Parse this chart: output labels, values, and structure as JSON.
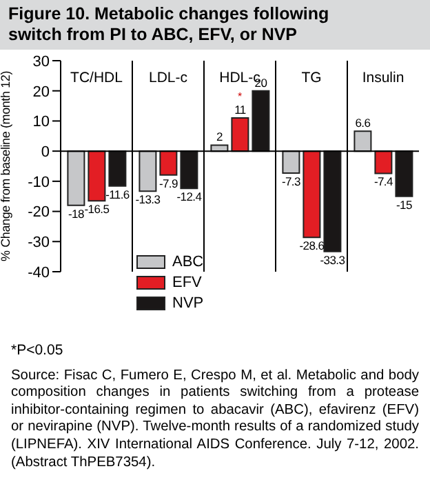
{
  "chart_data": {
    "type": "bar",
    "title": "Figure 10. Metabolic changes following switch from PI to ABC, EFV, or NVP",
    "ylabel": "% Change from baseline (month 12)",
    "categories": [
      "TC/HDL",
      "LDL-c",
      "HDL-c",
      "TG",
      "Insulin"
    ],
    "series": [
      {
        "name": "ABC",
        "color": "#c6c7c9",
        "values": [
          -18,
          -13.3,
          2,
          -7.3,
          6.6
        ]
      },
      {
        "name": "EFV",
        "color": "#e31e24",
        "values": [
          -16.5,
          -7.9,
          11,
          -28.6,
          -7.4
        ]
      },
      {
        "name": "NVP",
        "color": "#1a1717",
        "values": [
          -11.6,
          -12.4,
          20,
          -33.3,
          -15
        ]
      }
    ],
    "ylim": [
      -40,
      30
    ],
    "yticks": [
      -40,
      -30,
      -20,
      -10,
      0,
      10,
      20,
      30
    ],
    "grid": "x",
    "legend": "bottom left",
    "data_labels": true,
    "ref_lines": [
      {
        "axis": "y",
        "value": 0,
        "color": "#000000"
      }
    ],
    "annotations": [
      {
        "text": "*",
        "x": "HDL-c",
        "y": 11
      },
      "*P<0.05",
      "Source: Fisac C, Fumero E, Crespo M, et al. Metabolic and body composition changes in patients switching from a protease inhibitor-containing regimen to abacavir (ABC), efavirenz (EFV) or nevirapine (NVP). Twelve-month results of a randomized study (LIPNEFA). XIV International AIDS Conference. July 7-12, 2002. (Abstract ThPEB7354)."
    ]
  }
}
